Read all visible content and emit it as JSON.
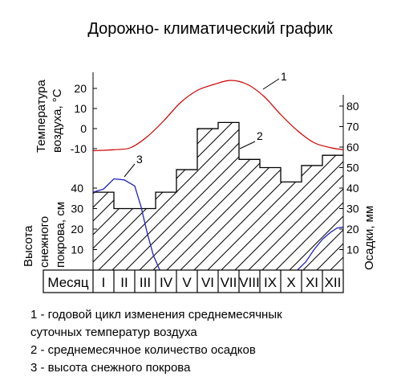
{
  "title": "Дорожно- климатический график",
  "axes": {
    "temperature_label_1": "Температура",
    "temperature_label_2": "воздуха, °С",
    "snow_label_1": "Высота",
    "snow_label_2": "снежного",
    "snow_label_3": "покрова, см",
    "precip_label": "Осадки, мм"
  },
  "month_header": "Месяц",
  "legend": [
    "1 -  годовой цикл изменения среднемесячнык",
    "суточных  температур воздуха",
    "2 -  среднемесячное количество осадков",
    "3 -  высота снежного покрова"
  ],
  "chart_data": {
    "type": "line",
    "title": "Дорожно- климатический график",
    "categories": [
      "I",
      "II",
      "III",
      "IV",
      "V",
      "VI",
      "VII",
      "VIII",
      "IX",
      "X",
      "XI",
      "XII"
    ],
    "temperature_axis": {
      "ticks": [
        20,
        10,
        0,
        -10
      ]
    },
    "snow_axis": {
      "ticks": [
        40,
        30,
        20,
        10
      ],
      "ylim": [
        0,
        45
      ]
    },
    "precip_axis": {
      "ticks": [
        80,
        70,
        60,
        50,
        40,
        30,
        20,
        10
      ],
      "ylim": [
        0,
        90
      ]
    },
    "series": [
      {
        "name": "1",
        "axis": "temperature",
        "color": "#cc0000",
        "x": [
          0,
          1,
          1.8,
          2.6,
          3.4,
          4.2,
          5,
          5.8,
          6.6,
          7.4,
          8.2,
          9,
          9.8,
          10.6,
          11.4,
          12
        ],
        "values": [
          -11,
          -10.5,
          -9.5,
          -4,
          4,
          13,
          19,
          22,
          24,
          22,
          16,
          7,
          -1,
          -7,
          -9.5,
          -10.5
        ]
      },
      {
        "name": "2",
        "axis": "precipitation",
        "color": "#000000",
        "type": "step",
        "values": [
          38,
          30,
          30,
          38,
          49,
          69,
          72,
          54,
          50,
          43,
          51,
          56
        ]
      },
      {
        "name": "3",
        "axis": "snow",
        "color": "#2222bb",
        "segments": [
          {
            "x": [
              0,
              0.5,
              1,
              1.5,
              2,
              2.3,
              2.6,
              2.9,
              3.2
            ],
            "values": [
              38,
              39.5,
              44.5,
              44,
              41,
              31,
              18,
              7,
              0
            ]
          },
          {
            "x": [
              9.8,
              10.2,
              10.6,
              11,
              11.4,
              11.7,
              12
            ],
            "values": [
              0,
              4,
              10,
              15,
              18.5,
              20.5,
              21
            ]
          }
        ]
      }
    ],
    "annotations": [
      {
        "text": "1",
        "series": "1"
      },
      {
        "text": "2",
        "series": "2"
      },
      {
        "text": "3",
        "series": "3"
      }
    ]
  }
}
